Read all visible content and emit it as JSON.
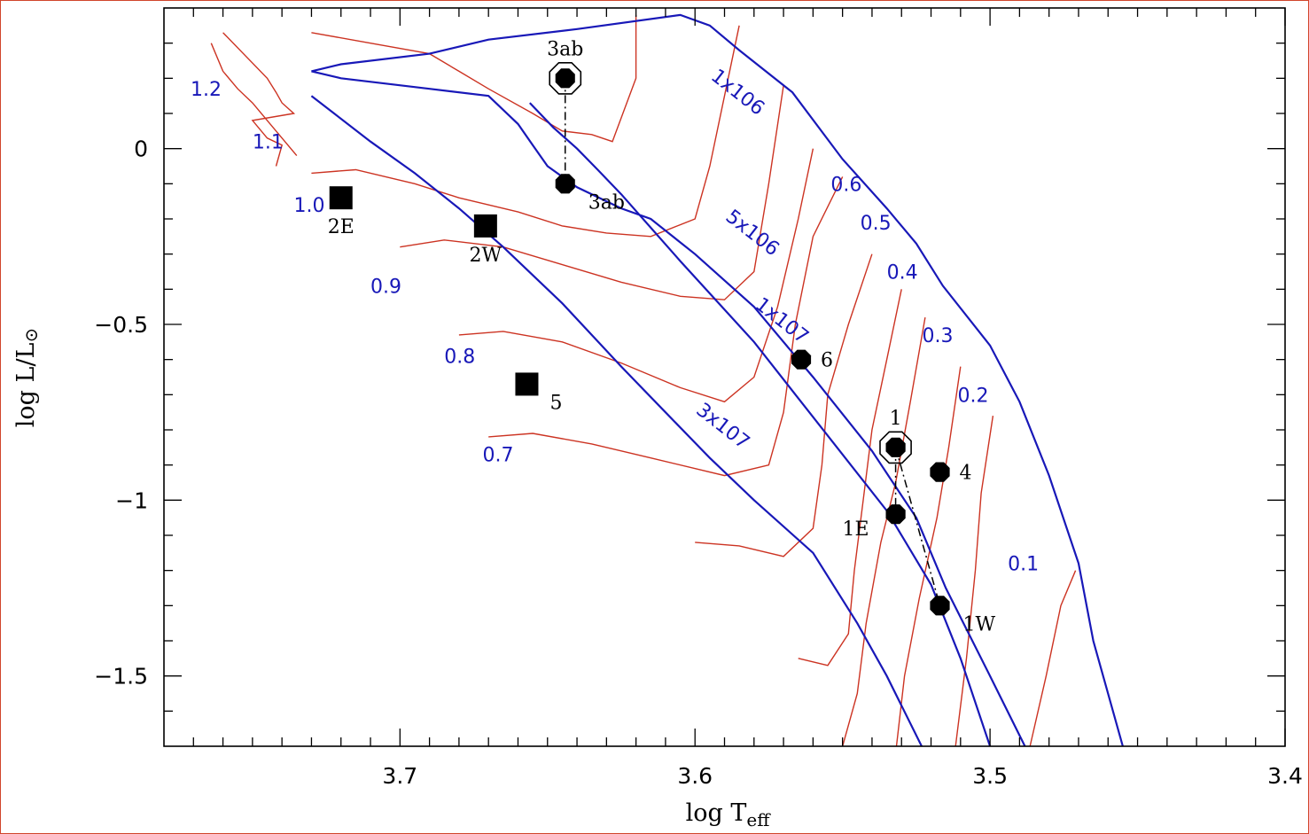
{
  "chart_data": {
    "type": "scatter",
    "xlabel": "log  T",
    "xlabel_sub": "eff",
    "ylabel": "log  L/L",
    "ylabel_sub": "⊙",
    "xlim": [
      3.78,
      3.4
    ],
    "ylim": [
      -1.7,
      0.4
    ],
    "x_ticks": [
      3.7,
      3.6,
      3.5,
      3.4
    ],
    "x_tick_labels": [
      "3.7",
      "3.6",
      "3.5",
      "3.4"
    ],
    "y_ticks": [
      0,
      -0.5,
      -1,
      -1.5
    ],
    "y_tick_labels": [
      "0",
      "−0.5",
      "−1",
      "−1.5"
    ],
    "colors": {
      "isochrone": "#1818b8",
      "track": "#cc3322",
      "point": "#000000",
      "frame": "#d0452b"
    },
    "points": [
      {
        "label": "3ab",
        "x": 3.644,
        "y": 0.2,
        "marker": "open-circled",
        "label_pos": "above"
      },
      {
        "label": "3ab",
        "x": 3.644,
        "y": -0.1,
        "marker": "octagon",
        "label_pos": "right-below"
      },
      {
        "label": "2E",
        "x": 3.72,
        "y": -0.14,
        "marker": "square",
        "label_pos": "below"
      },
      {
        "label": "2W",
        "x": 3.671,
        "y": -0.22,
        "marker": "square",
        "label_pos": "below"
      },
      {
        "label": "5",
        "x": 3.657,
        "y": -0.67,
        "marker": "square",
        "label_pos": "right-below"
      },
      {
        "label": "6",
        "x": 3.564,
        "y": -0.6,
        "marker": "octagon",
        "label_pos": "right"
      },
      {
        "label": "1",
        "x": 3.532,
        "y": -0.85,
        "marker": "open-circled",
        "label_pos": "above"
      },
      {
        "label": "4",
        "x": 3.517,
        "y": -0.92,
        "marker": "octagon",
        "label_pos": "right"
      },
      {
        "label": "1E",
        "x": 3.532,
        "y": -1.04,
        "marker": "octagon",
        "label_pos": "left-below"
      },
      {
        "label": "1W",
        "x": 3.517,
        "y": -1.3,
        "marker": "octagon",
        "label_pos": "right-below"
      }
    ],
    "links": [
      {
        "from": [
          3.644,
          0.2
        ],
        "to": [
          3.644,
          -0.1
        ]
      },
      {
        "from": [
          3.532,
          -0.85
        ],
        "to": [
          3.532,
          -1.04
        ]
      },
      {
        "from": [
          3.532,
          -0.85
        ],
        "to": [
          3.517,
          -1.3
        ]
      }
    ],
    "isochrones": [
      {
        "label": "1x106",
        "points": [
          [
            3.73,
            0.22
          ],
          [
            3.72,
            0.24
          ],
          [
            3.69,
            0.27
          ],
          [
            3.67,
            0.31
          ],
          [
            3.64,
            0.34
          ],
          [
            3.605,
            0.38
          ],
          [
            3.595,
            0.35
          ],
          [
            3.585,
            0.28
          ],
          [
            3.567,
            0.16
          ],
          [
            3.55,
            -0.03
          ],
          [
            3.535,
            -0.17
          ],
          [
            3.525,
            -0.27
          ],
          [
            3.516,
            -0.39
          ],
          [
            3.5,
            -0.56
          ],
          [
            3.49,
            -0.72
          ],
          [
            3.48,
            -0.93
          ],
          [
            3.47,
            -1.18
          ],
          [
            3.465,
            -1.4
          ],
          [
            3.455,
            -1.7
          ]
        ]
      },
      {
        "label": "5x106",
        "points": [
          [
            3.656,
            0.13
          ],
          [
            3.648,
            0.06
          ],
          [
            3.64,
            0
          ],
          [
            3.633,
            -0.06
          ],
          [
            3.625,
            -0.13
          ],
          [
            3.605,
            -0.32
          ],
          [
            3.58,
            -0.55
          ],
          [
            3.565,
            -0.71
          ],
          [
            3.55,
            -0.87
          ],
          [
            3.535,
            -1.03
          ],
          [
            3.52,
            -1.24
          ],
          [
            3.51,
            -1.45
          ],
          [
            3.5,
            -1.7
          ]
        ]
      },
      {
        "label": "1x107",
        "points": [
          [
            3.73,
            0.22
          ],
          [
            3.72,
            0.2
          ],
          [
            3.69,
            0.17
          ],
          [
            3.67,
            0.15
          ],
          [
            3.66,
            0.07
          ],
          [
            3.655,
            0.01
          ],
          [
            3.65,
            -0.05
          ],
          [
            3.64,
            -0.11
          ],
          [
            3.625,
            -0.17
          ],
          [
            3.615,
            -0.2
          ],
          [
            3.6,
            -0.3
          ],
          [
            3.58,
            -0.45
          ],
          [
            3.56,
            -0.65
          ],
          [
            3.54,
            -0.86
          ],
          [
            3.525,
            -1.05
          ],
          [
            3.515,
            -1.25
          ],
          [
            3.5,
            -1.5
          ],
          [
            3.487,
            -1.72
          ]
        ]
      },
      {
        "label": "3x107",
        "points": [
          [
            3.73,
            0.15
          ],
          [
            3.71,
            0.02
          ],
          [
            3.695,
            -0.07
          ],
          [
            3.68,
            -0.17
          ],
          [
            3.665,
            -0.28
          ],
          [
            3.645,
            -0.44
          ],
          [
            3.625,
            -0.62
          ],
          [
            3.61,
            -0.75
          ],
          [
            3.595,
            -0.88
          ],
          [
            3.58,
            -1
          ],
          [
            3.56,
            -1.15
          ],
          [
            3.545,
            -1.35
          ],
          [
            3.535,
            -1.5
          ],
          [
            3.522,
            -1.72
          ]
        ]
      }
    ],
    "iso_labels": [
      {
        "text": "1x106",
        "x": 3.595,
        "y": 0.2,
        "angle": 38
      },
      {
        "text": "5x106",
        "x": 3.59,
        "y": -0.2,
        "angle": 38
      },
      {
        "text": "1x107",
        "x": 3.58,
        "y": -0.45,
        "angle": 38
      },
      {
        "text": "3x107",
        "x": 3.6,
        "y": -0.75,
        "angle": 38
      }
    ],
    "mass_labels": [
      {
        "text": "1.2",
        "x": 3.771,
        "y": 0.15
      },
      {
        "text": "1.1",
        "x": 3.75,
        "y": 0
      },
      {
        "text": "1.0",
        "x": 3.736,
        "y": -0.18
      },
      {
        "text": "0.9",
        "x": 3.71,
        "y": -0.41
      },
      {
        "text": "0.8",
        "x": 3.685,
        "y": -0.61
      },
      {
        "text": "0.7",
        "x": 3.672,
        "y": -0.89
      },
      {
        "text": "0.6",
        "x": 3.554,
        "y": -0.12
      },
      {
        "text": "0.5",
        "x": 3.544,
        "y": -0.23
      },
      {
        "text": "0.4",
        "x": 3.535,
        "y": -0.37
      },
      {
        "text": "0.3",
        "x": 3.523,
        "y": -0.55
      },
      {
        "text": "0.2",
        "x": 3.511,
        "y": -0.72
      },
      {
        "text": "0.1",
        "x": 3.494,
        "y": -1.2
      }
    ],
    "tracks": [
      [
        [
          3.764,
          0.3
        ],
        [
          3.76,
          0.22
        ],
        [
          3.755,
          0.17
        ],
        [
          3.75,
          0.13
        ],
        [
          3.745,
          0.08
        ],
        [
          3.74,
          0.03
        ],
        [
          3.735,
          -0.02
        ]
      ],
      [
        [
          3.76,
          0.33
        ],
        [
          3.745,
          0.2
        ],
        [
          3.742,
          0.16
        ],
        [
          3.74,
          0.13
        ],
        [
          3.736,
          0.1
        ],
        [
          3.75,
          0.08
        ],
        [
          3.745,
          0.03
        ],
        [
          3.74,
          0.01
        ],
        [
          3.742,
          -0.05
        ]
      ],
      [
        [
          3.73,
          0.33
        ],
        [
          3.71,
          0.3
        ],
        [
          3.69,
          0.27
        ],
        [
          3.68,
          0.22
        ],
        [
          3.67,
          0.17
        ],
        [
          3.655,
          0.1
        ],
        [
          3.645,
          0.05
        ],
        [
          3.635,
          0.04
        ],
        [
          3.628,
          0.02
        ],
        [
          3.62,
          0.2
        ],
        [
          3.62,
          0.38
        ]
      ],
      [
        [
          3.73,
          -0.07
        ],
        [
          3.715,
          -0.06
        ],
        [
          3.695,
          -0.1
        ],
        [
          3.68,
          -0.14
        ],
        [
          3.66,
          -0.18
        ],
        [
          3.645,
          -0.22
        ],
        [
          3.63,
          -0.24
        ],
        [
          3.615,
          -0.25
        ],
        [
          3.6,
          -0.2
        ],
        [
          3.595,
          -0.05
        ],
        [
          3.59,
          0.15
        ],
        [
          3.585,
          0.35
        ]
      ],
      [
        [
          3.7,
          -0.28
        ],
        [
          3.685,
          -0.26
        ],
        [
          3.665,
          -0.28
        ],
        [
          3.645,
          -0.33
        ],
        [
          3.625,
          -0.38
        ],
        [
          3.605,
          -0.42
        ],
        [
          3.59,
          -0.43
        ],
        [
          3.58,
          -0.35
        ],
        [
          3.575,
          -0.1
        ],
        [
          3.57,
          0.18
        ]
      ],
      [
        [
          3.68,
          -0.53
        ],
        [
          3.665,
          -0.52
        ],
        [
          3.645,
          -0.55
        ],
        [
          3.625,
          -0.61
        ],
        [
          3.605,
          -0.68
        ],
        [
          3.59,
          -0.72
        ],
        [
          3.58,
          -0.65
        ],
        [
          3.572,
          -0.45
        ],
        [
          3.565,
          -0.2
        ],
        [
          3.56,
          0
        ]
      ],
      [
        [
          3.67,
          -0.82
        ],
        [
          3.655,
          -0.81
        ],
        [
          3.635,
          -0.84
        ],
        [
          3.615,
          -0.88
        ],
        [
          3.59,
          -0.93
        ],
        [
          3.575,
          -0.9
        ],
        [
          3.57,
          -0.75
        ],
        [
          3.566,
          -0.5
        ],
        [
          3.56,
          -0.25
        ],
        [
          3.55,
          -0.08
        ]
      ],
      [
        [
          3.6,
          -1.12
        ],
        [
          3.585,
          -1.13
        ],
        [
          3.57,
          -1.16
        ],
        [
          3.56,
          -1.08
        ],
        [
          3.557,
          -0.9
        ],
        [
          3.555,
          -0.7
        ],
        [
          3.548,
          -0.5
        ],
        [
          3.54,
          -0.3
        ]
      ],
      [
        [
          3.565,
          -1.45
        ],
        [
          3.555,
          -1.47
        ],
        [
          3.548,
          -1.38
        ],
        [
          3.546,
          -1.2
        ],
        [
          3.543,
          -1.0
        ],
        [
          3.54,
          -0.8
        ],
        [
          3.535,
          -0.6
        ],
        [
          3.53,
          -0.4
        ]
      ],
      [
        [
          3.55,
          -1.7
        ],
        [
          3.545,
          -1.55
        ],
        [
          3.542,
          -1.35
        ],
        [
          3.537,
          -1.12
        ],
        [
          3.532,
          -0.95
        ],
        [
          3.527,
          -0.72
        ],
        [
          3.522,
          -0.48
        ]
      ],
      [
        [
          3.532,
          -1.72
        ],
        [
          3.529,
          -1.5
        ],
        [
          3.524,
          -1.28
        ],
        [
          3.518,
          -1.05
        ],
        [
          3.514,
          -0.85
        ],
        [
          3.51,
          -0.62
        ]
      ],
      [
        [
          3.512,
          -1.72
        ],
        [
          3.508,
          -1.45
        ],
        [
          3.505,
          -1.2
        ],
        [
          3.503,
          -0.98
        ],
        [
          3.499,
          -0.76
        ]
      ],
      [
        [
          3.487,
          -1.72
        ],
        [
          3.481,
          -1.5
        ],
        [
          3.476,
          -1.3
        ],
        [
          3.471,
          -1.2
        ]
      ]
    ]
  }
}
